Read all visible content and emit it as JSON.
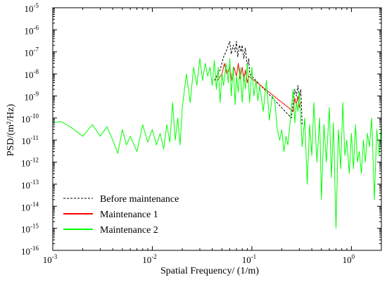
{
  "chart_data": {
    "type": "line",
    "title": "",
    "xlabel": "Spatial Frequency/ (1/m)",
    "ylabel": "PSD/(m²/Hz)",
    "xscale": "log",
    "yscale": "log",
    "xlim": [
      0.001,
      2
    ],
    "ylim": [
      1e-16,
      1e-05
    ],
    "x_ticks": [
      {
        "base": "10",
        "exp": "-3",
        "value": 0.001
      },
      {
        "base": "10",
        "exp": "-2",
        "value": 0.01
      },
      {
        "base": "10",
        "exp": "-1",
        "value": 0.1
      },
      {
        "base": "10",
        "exp": "0",
        "value": 1
      }
    ],
    "y_ticks": [
      {
        "base": "10",
        "exp": "-5",
        "value": 1e-05
      },
      {
        "base": "10",
        "exp": "-6",
        "value": 1e-06
      },
      {
        "base": "10",
        "exp": "-7",
        "value": 1e-07
      },
      {
        "base": "10",
        "exp": "-8",
        "value": 1e-08
      },
      {
        "base": "10",
        "exp": "-9",
        "value": 1e-09
      },
      {
        "base": "10",
        "exp": "-10",
        "value": 1e-10
      },
      {
        "base": "10",
        "exp": "-11",
        "value": 1e-11
      },
      {
        "base": "10",
        "exp": "-12",
        "value": 1e-12
      },
      {
        "base": "10",
        "exp": "-13",
        "value": 1e-13
      },
      {
        "base": "10",
        "exp": "-14",
        "value": 1e-14
      },
      {
        "base": "10",
        "exp": "-15",
        "value": 1e-15
      },
      {
        "base": "10",
        "exp": "-16",
        "value": 1e-16
      }
    ],
    "grid": false,
    "legend_position": "bottom-left",
    "series": [
      {
        "name": "Before maintenance",
        "color": "#000000",
        "style": "dashed",
        "x": [
          0.042,
          0.048,
          0.052,
          0.055,
          0.058,
          0.06,
          0.062,
          0.065,
          0.068,
          0.07,
          0.072,
          0.075,
          0.078,
          0.08,
          0.083,
          0.086,
          0.09,
          0.093,
          0.095,
          0.25,
          0.26,
          0.27,
          0.28,
          0.29,
          0.3,
          0.31,
          0.32
        ],
        "y": [
          5e-09,
          1.5e-08,
          6e-08,
          1e-07,
          2e-07,
          3e-07,
          8e-08,
          2e-07,
          1e-07,
          3e-07,
          6e-08,
          2e-07,
          1e-07,
          2e-07,
          5e-08,
          1.5e-07,
          2e-08,
          5e-08,
          1e-08,
          1e-10,
          5e-10,
          2e-09,
          1e-09,
          3e-09,
          8e-10,
          2e-09,
          5e-11
        ]
      },
      {
        "name": "Maintenance 1",
        "color": "#ff0000",
        "style": "solid",
        "x": [
          0.045,
          0.05,
          0.053,
          0.056,
          0.06,
          0.063,
          0.066,
          0.07,
          0.073,
          0.076,
          0.08,
          0.083,
          0.086,
          0.09,
          0.093,
          0.26,
          0.27,
          0.28,
          0.29,
          0.3,
          0.31
        ],
        "y": [
          5e-09,
          1e-08,
          3e-08,
          1e-08,
          2e-08,
          5e-09,
          2e-08,
          8e-09,
          3e-08,
          6e-09,
          2e-08,
          5e-09,
          1.5e-08,
          4e-09,
          8e-09,
          2e-10,
          8e-10,
          4e-10,
          1e-09,
          3e-10,
          5e-10
        ]
      },
      {
        "name": "Maintenance 2",
        "color": "#00ff00",
        "style": "solid",
        "x": [
          0.001,
          0.0012,
          0.0015,
          0.002,
          0.0025,
          0.003,
          0.0035,
          0.004,
          0.0045,
          0.005,
          0.0055,
          0.006,
          0.007,
          0.008,
          0.009,
          0.01,
          0.011,
          0.012,
          0.013,
          0.014,
          0.015,
          0.016,
          0.017,
          0.018,
          0.019,
          0.02,
          0.022,
          0.024,
          0.026,
          0.028,
          0.03,
          0.032,
          0.034,
          0.036,
          0.038,
          0.04,
          0.042,
          0.044,
          0.046,
          0.048,
          0.05,
          0.052,
          0.055,
          0.058,
          0.06,
          0.062,
          0.065,
          0.068,
          0.07,
          0.073,
          0.076,
          0.08,
          0.083,
          0.086,
          0.09,
          0.095,
          0.1,
          0.105,
          0.11,
          0.115,
          0.12,
          0.13,
          0.14,
          0.15,
          0.16,
          0.17,
          0.18,
          0.19,
          0.2,
          0.21,
          0.22,
          0.23,
          0.24,
          0.25,
          0.26,
          0.27,
          0.28,
          0.29,
          0.3,
          0.32,
          0.34,
          0.36,
          0.38,
          0.4,
          0.42,
          0.45,
          0.48,
          0.5,
          0.53,
          0.56,
          0.6,
          0.63,
          0.66,
          0.7,
          0.74,
          0.78,
          0.82,
          0.86,
          0.9,
          0.95,
          1.0,
          1.05,
          1.1,
          1.15,
          1.2,
          1.26,
          1.32,
          1.38,
          1.45,
          1.52,
          1.6,
          1.7,
          1.8,
          1.9,
          2.0
        ],
        "y": [
          6e-11,
          7e-11,
          4e-11,
          1.5e-11,
          5e-11,
          1.5e-11,
          4e-11,
          1e-11,
          2.5e-12,
          3e-11,
          6e-12,
          1.5e-11,
          3e-12,
          5e-11,
          8e-12,
          3e-11,
          6e-12,
          2e-11,
          4e-12,
          5e-11,
          8e-12,
          5e-10,
          1e-11,
          1e-10,
          6e-12,
          3e-10,
          1e-08,
          5e-10,
          2e-08,
          3e-09,
          5e-08,
          5e-09,
          3e-08,
          8e-09,
          2e-08,
          3e-09,
          4e-08,
          2e-09,
          2e-08,
          5e-10,
          1e-08,
          3e-09,
          3e-08,
          4e-09,
          5e-08,
          1e-09,
          2e-08,
          4e-10,
          8e-09,
          1.5e-09,
          2e-08,
          5e-10,
          1e-08,
          2e-09,
          3e-08,
          5e-10,
          2e-08,
          1e-09,
          5e-09,
          6e-10,
          3e-09,
          2e-10,
          5e-09,
          8e-11,
          1e-09,
          6e-10,
          3e-11,
          1e-11,
          3e-11,
          3e-12,
          1.5e-11,
          6e-12,
          4e-11,
          3e-10,
          2e-09,
          6e-11,
          5e-10,
          2e-10,
          1.5e-09,
          5e-12,
          1e-10,
          1e-13,
          5e-11,
          2e-12,
          5e-10,
          1e-12,
          1e-10,
          2e-14,
          5e-11,
          1e-12,
          3e-10,
          2e-13,
          6e-11,
          1e-15,
          3e-11,
          5e-13,
          5e-10,
          2e-12,
          1e-11,
          3e-13,
          2e-11,
          5e-13,
          5e-11,
          1e-12,
          3e-12,
          3e-13,
          1e-11,
          1e-12,
          2e-11,
          5e-12,
          1e-10,
          2e-14,
          3e-11,
          2e-12,
          5e-11
        ]
      }
    ]
  }
}
